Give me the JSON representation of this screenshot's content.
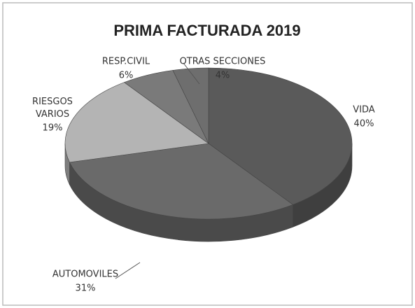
{
  "chart_data": {
    "type": "pie",
    "title": "PRIMA FACTURADA 2019",
    "categories": [
      "VIDA",
      "AUTOMOVILES",
      "RIESGOS VARIOS",
      "RESP.CIVIL",
      "OTRAS SECCIONES"
    ],
    "values": [
      40,
      31,
      19,
      6,
      4
    ],
    "value_labels": [
      "40%",
      "31%",
      "19%",
      "6%",
      "4%"
    ],
    "colors": [
      "#5a5a5a",
      "#6a6a6a",
      "#b4b4b4",
      "#7a7a7a",
      "#6e6e6e"
    ]
  }
}
